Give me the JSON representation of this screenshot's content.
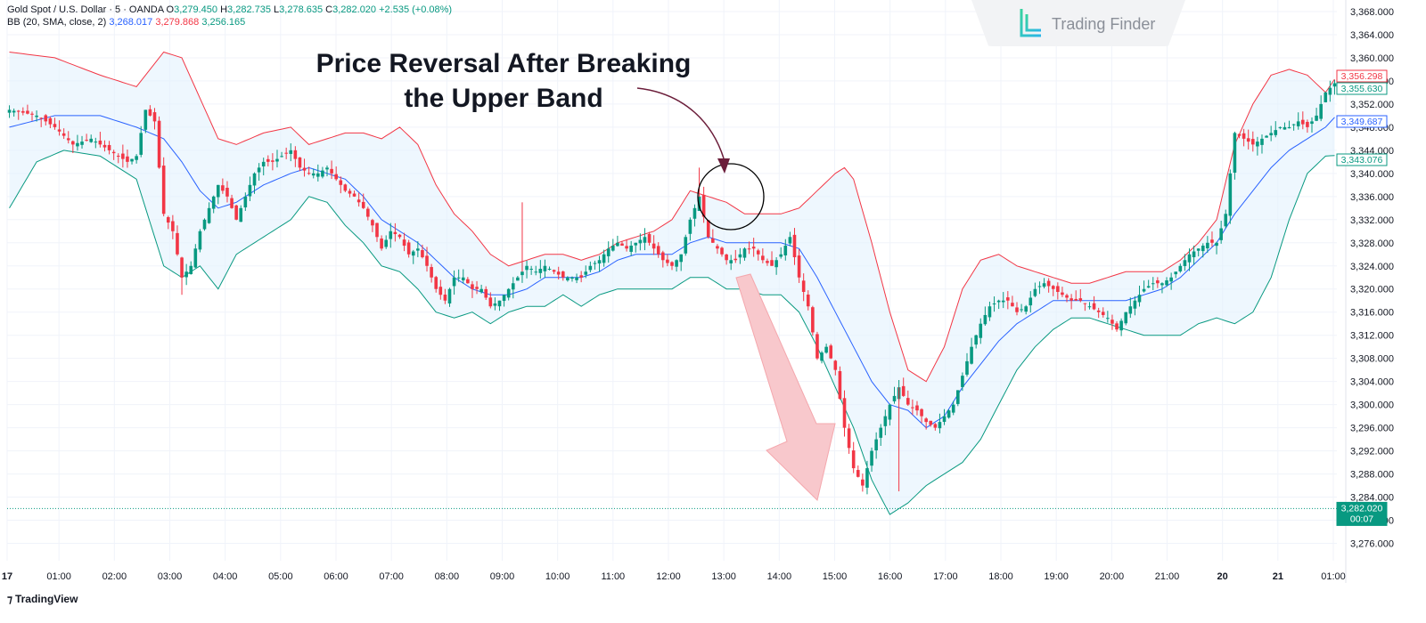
{
  "legend": {
    "symbol": "Gold Spot / U.S. Dollar · 5 · OANDA",
    "o_label": "O",
    "o_value": "3,279.450",
    "h_label": "H",
    "h_value": "3,282.735",
    "l_label": "L",
    "l_value": "3,278.635",
    "c_label": "C",
    "c_value": "3,282.020",
    "change": "+2.535 (+0.08%)",
    "bb_label": "BB (20, SMA, close, 2)",
    "bb_basis": "3,268.017",
    "bb_upper": "3,279.868",
    "bb_lower": "3,256.165"
  },
  "watermark": {
    "text": "Trading Finder",
    "icon": "trading-finder-logo-icon"
  },
  "annotation": {
    "line1": "Price Reversal After Breaking",
    "line2": "the Upper Band"
  },
  "footer": {
    "logo_text": "TradingView",
    "icon": "tradingview-logo-icon"
  },
  "colors": {
    "up": "#089981",
    "down": "#f23645",
    "basis": "#2962ff",
    "upper_band": "#f23645",
    "lower_band": "#089981",
    "band_fill": "#e3f2fd",
    "arrow_fill": "#f8c8cc",
    "curved_arrow": "#6b1d3a"
  },
  "chart_data": {
    "type": "candlestick",
    "y_ticks": [
      "3,368.000",
      "3,364.000",
      "3,360.000",
      "3,356.000",
      "3,352.000",
      "3,348.000",
      "3,344.000",
      "3,340.000",
      "3,336.000",
      "3,332.000",
      "3,328.000",
      "3,324.000",
      "3,320.000",
      "3,316.000",
      "3,312.000",
      "3,308.000",
      "3,304.000",
      "3,300.000",
      "3,296.000",
      "3,292.000",
      "3,288.000",
      "3,284.000",
      "3,280.000",
      "3,276.000"
    ],
    "ylim": [
      3273,
      3370
    ],
    "x_ticks": [
      "17",
      "01:00",
      "02:00",
      "03:00",
      "04:00",
      "05:00",
      "06:00",
      "07:00",
      "08:00",
      "09:00",
      "10:00",
      "11:00",
      "12:00",
      "13:00",
      "14:00",
      "15:00",
      "16:00",
      "17:00",
      "18:00",
      "19:00",
      "20:00",
      "21:00",
      "20",
      "21",
      "01:00"
    ],
    "bold_x_ticks": [
      "17",
      "20",
      "21"
    ],
    "price_labels": [
      {
        "value": 3356.298,
        "text": "3,356.298",
        "series": "upper"
      },
      {
        "value": 3355.63,
        "text": "3,355.630",
        "series": "close"
      },
      {
        "value": 3349.687,
        "text": "3,349.687",
        "series": "basis"
      },
      {
        "value": 3343.076,
        "text": "3,343.076",
        "series": "lower"
      },
      {
        "value": 3282.02,
        "text": "3,282.020",
        "series": "last",
        "sub": "00:07"
      }
    ],
    "last_price_line": 3282.02,
    "close_path": [
      [
        0,
        3351
      ],
      [
        6,
        3350
      ],
      [
        10,
        3348
      ],
      [
        14,
        3345
      ],
      [
        18,
        3346
      ],
      [
        22,
        3344
      ],
      [
        26,
        3342
      ],
      [
        28,
        3343
      ],
      [
        30,
        3351
      ],
      [
        32,
        3349
      ],
      [
        34,
        3333
      ],
      [
        36,
        3330
      ],
      [
        38,
        3322
      ],
      [
        40,
        3324
      ],
      [
        42,
        3330
      ],
      [
        44,
        3334
      ],
      [
        46,
        3338
      ],
      [
        48,
        3336
      ],
      [
        50,
        3332
      ],
      [
        52,
        3336
      ],
      [
        54,
        3340
      ],
      [
        56,
        3342
      ],
      [
        58,
        3342
      ],
      [
        60,
        3343
      ],
      [
        62,
        3344
      ],
      [
        64,
        3341
      ],
      [
        66,
        3340
      ],
      [
        68,
        3340
      ],
      [
        70,
        3341
      ],
      [
        72,
        3339
      ],
      [
        74,
        3337
      ],
      [
        76,
        3336
      ],
      [
        78,
        3334
      ],
      [
        80,
        3331
      ],
      [
        82,
        3327
      ],
      [
        84,
        3330
      ],
      [
        86,
        3329
      ],
      [
        88,
        3326
      ],
      [
        90,
        3327
      ],
      [
        92,
        3324
      ],
      [
        94,
        3320
      ],
      [
        96,
        3318
      ],
      [
        98,
        3322
      ],
      [
        100,
        3322
      ],
      [
        102,
        3320
      ],
      [
        104,
        3320
      ],
      [
        106,
        3317
      ],
      [
        108,
        3318
      ],
      [
        110,
        3320
      ],
      [
        112,
        3322
      ],
      [
        114,
        3324
      ],
      [
        116,
        3323
      ],
      [
        118,
        3324
      ],
      [
        120,
        3323
      ],
      [
        122,
        3322
      ],
      [
        124,
        3322
      ],
      [
        126,
        3322
      ],
      [
        128,
        3324
      ],
      [
        130,
        3325
      ],
      [
        132,
        3327
      ],
      [
        134,
        3328
      ],
      [
        136,
        3327
      ],
      [
        138,
        3328
      ],
      [
        140,
        3329
      ],
      [
        142,
        3327
      ],
      [
        144,
        3325
      ],
      [
        146,
        3324
      ],
      [
        148,
        3326
      ],
      [
        150,
        3332
      ],
      [
        152,
        3336
      ],
      [
        154,
        3329
      ],
      [
        156,
        3327
      ],
      [
        158,
        3325
      ],
      [
        160,
        3325
      ],
      [
        162,
        3327
      ],
      [
        164,
        3327
      ],
      [
        166,
        3325
      ],
      [
        168,
        3324
      ],
      [
        170,
        3326
      ],
      [
        172,
        3329
      ],
      [
        174,
        3322
      ],
      [
        176,
        3317
      ],
      [
        178,
        3308
      ],
      [
        180,
        3310
      ],
      [
        182,
        3306
      ],
      [
        184,
        3296
      ],
      [
        186,
        3289
      ],
      [
        188,
        3286
      ],
      [
        190,
        3292
      ],
      [
        192,
        3296
      ],
      [
        194,
        3300
      ],
      [
        196,
        3303
      ],
      [
        198,
        3300
      ],
      [
        200,
        3299
      ],
      [
        202,
        3297
      ],
      [
        204,
        3296
      ],
      [
        206,
        3298
      ],
      [
        208,
        3300
      ],
      [
        210,
        3305
      ],
      [
        212,
        3310
      ],
      [
        214,
        3314
      ],
      [
        216,
        3317
      ],
      [
        218,
        3318
      ],
      [
        220,
        3318
      ],
      [
        222,
        3316
      ],
      [
        224,
        3317
      ],
      [
        226,
        3320
      ],
      [
        228,
        3321
      ],
      [
        230,
        3320
      ],
      [
        232,
        3319
      ],
      [
        234,
        3318
      ],
      [
        236,
        3318
      ],
      [
        238,
        3317
      ],
      [
        240,
        3316
      ],
      [
        242,
        3315
      ],
      [
        244,
        3313
      ],
      [
        246,
        3316
      ],
      [
        248,
        3318
      ],
      [
        250,
        3320
      ],
      [
        252,
        3321
      ],
      [
        254,
        3321
      ],
      [
        256,
        3322
      ],
      [
        258,
        3324
      ],
      [
        260,
        3326
      ],
      [
        262,
        3327
      ],
      [
        264,
        3328
      ],
      [
        266,
        3328
      ],
      [
        268,
        3333
      ],
      [
        270,
        3347
      ],
      [
        272,
        3346
      ],
      [
        274,
        3345
      ],
      [
        276,
        3346
      ],
      [
        278,
        3347
      ],
      [
        280,
        3348
      ],
      [
        282,
        3348
      ],
      [
        284,
        3349
      ],
      [
        286,
        3348
      ],
      [
        288,
        3350
      ],
      [
        290,
        3354
      ],
      [
        292,
        3355.6
      ]
    ],
    "upper_path": [
      [
        0,
        3361
      ],
      [
        10,
        3360
      ],
      [
        20,
        3357
      ],
      [
        28,
        3355
      ],
      [
        34,
        3361
      ],
      [
        38,
        3360
      ],
      [
        42,
        3353
      ],
      [
        46,
        3346
      ],
      [
        50,
        3345
      ],
      [
        56,
        3347
      ],
      [
        62,
        3348
      ],
      [
        66,
        3345
      ],
      [
        70,
        3346
      ],
      [
        74,
        3347
      ],
      [
        78,
        3347
      ],
      [
        82,
        3346
      ],
      [
        86,
        3348
      ],
      [
        90,
        3345
      ],
      [
        94,
        3338
      ],
      [
        98,
        3333
      ],
      [
        102,
        3330
      ],
      [
        106,
        3326
      ],
      [
        110,
        3324
      ],
      [
        114,
        3325
      ],
      [
        118,
        3326
      ],
      [
        122,
        3326
      ],
      [
        126,
        3325
      ],
      [
        130,
        3326
      ],
      [
        134,
        3328
      ],
      [
        138,
        3329
      ],
      [
        142,
        3330
      ],
      [
        146,
        3332
      ],
      [
        150,
        3337
      ],
      [
        154,
        3336
      ],
      [
        158,
        3335
      ],
      [
        162,
        3333
      ],
      [
        166,
        3333
      ],
      [
        170,
        3333
      ],
      [
        174,
        3334
      ],
      [
        178,
        3337
      ],
      [
        182,
        3340
      ],
      [
        184,
        3341
      ],
      [
        186,
        3339
      ],
      [
        190,
        3328
      ],
      [
        194,
        3316
      ],
      [
        198,
        3306
      ],
      [
        202,
        3304
      ],
      [
        206,
        3310
      ],
      [
        210,
        3320
      ],
      [
        214,
        3325
      ],
      [
        218,
        3326
      ],
      [
        222,
        3324
      ],
      [
        226,
        3323
      ],
      [
        230,
        3322
      ],
      [
        234,
        3321
      ],
      [
        238,
        3321
      ],
      [
        242,
        3322
      ],
      [
        246,
        3323
      ],
      [
        250,
        3323
      ],
      [
        254,
        3323
      ],
      [
        258,
        3325
      ],
      [
        262,
        3328
      ],
      [
        266,
        3332
      ],
      [
        270,
        3345
      ],
      [
        274,
        3352
      ],
      [
        278,
        3357
      ],
      [
        282,
        3358
      ],
      [
        286,
        3357
      ],
      [
        290,
        3354
      ],
      [
        292,
        3356.3
      ]
    ],
    "basis_path": [
      [
        0,
        3348
      ],
      [
        10,
        3350
      ],
      [
        20,
        3350
      ],
      [
        28,
        3348
      ],
      [
        34,
        3346
      ],
      [
        38,
        3342
      ],
      [
        42,
        3337
      ],
      [
        46,
        3334
      ],
      [
        50,
        3335
      ],
      [
        56,
        3338
      ],
      [
        62,
        3340
      ],
      [
        66,
        3341
      ],
      [
        70,
        3340
      ],
      [
        74,
        3339
      ],
      [
        78,
        3336
      ],
      [
        82,
        3332
      ],
      [
        86,
        3330
      ],
      [
        90,
        3328
      ],
      [
        94,
        3325
      ],
      [
        98,
        3322
      ],
      [
        102,
        3320
      ],
      [
        106,
        3319
      ],
      [
        110,
        3319
      ],
      [
        114,
        3320
      ],
      [
        118,
        3322
      ],
      [
        122,
        3322
      ],
      [
        126,
        3322
      ],
      [
        130,
        3323
      ],
      [
        134,
        3325
      ],
      [
        138,
        3326
      ],
      [
        142,
        3326
      ],
      [
        146,
        3326
      ],
      [
        150,
        3328
      ],
      [
        154,
        3329
      ],
      [
        158,
        3328
      ],
      [
        162,
        3328
      ],
      [
        166,
        3328
      ],
      [
        170,
        3328
      ],
      [
        174,
        3327
      ],
      [
        178,
        3322
      ],
      [
        182,
        3316
      ],
      [
        186,
        3310
      ],
      [
        190,
        3304
      ],
      [
        194,
        3300
      ],
      [
        198,
        3299
      ],
      [
        202,
        3296
      ],
      [
        206,
        3298
      ],
      [
        210,
        3303
      ],
      [
        214,
        3307
      ],
      [
        218,
        3311
      ],
      [
        222,
        3314
      ],
      [
        226,
        3316
      ],
      [
        230,
        3318
      ],
      [
        234,
        3318
      ],
      [
        238,
        3318
      ],
      [
        242,
        3318
      ],
      [
        246,
        3318
      ],
      [
        250,
        3319
      ],
      [
        254,
        3320
      ],
      [
        258,
        3322
      ],
      [
        262,
        3325
      ],
      [
        266,
        3328
      ],
      [
        270,
        3333
      ],
      [
        274,
        3337
      ],
      [
        278,
        3341
      ],
      [
        282,
        3344
      ],
      [
        286,
        3346
      ],
      [
        290,
        3348
      ],
      [
        292,
        3349.7
      ]
    ],
    "lower_path": [
      [
        0,
        3334
      ],
      [
        6,
        3342
      ],
      [
        12,
        3344
      ],
      [
        20,
        3343
      ],
      [
        28,
        3339
      ],
      [
        34,
        3324
      ],
      [
        38,
        3322
      ],
      [
        42,
        3324
      ],
      [
        46,
        3320
      ],
      [
        50,
        3326
      ],
      [
        56,
        3329
      ],
      [
        62,
        3332
      ],
      [
        66,
        3336
      ],
      [
        70,
        3335
      ],
      [
        74,
        3331
      ],
      [
        78,
        3328
      ],
      [
        82,
        3324
      ],
      [
        86,
        3323
      ],
      [
        90,
        3320
      ],
      [
        94,
        3316
      ],
      [
        98,
        3315
      ],
      [
        102,
        3316
      ],
      [
        106,
        3314
      ],
      [
        110,
        3316
      ],
      [
        114,
        3317
      ],
      [
        118,
        3317
      ],
      [
        122,
        3319
      ],
      [
        126,
        3317
      ],
      [
        130,
        3319
      ],
      [
        134,
        3320
      ],
      [
        138,
        3320
      ],
      [
        142,
        3320
      ],
      [
        146,
        3320
      ],
      [
        150,
        3322
      ],
      [
        154,
        3322
      ],
      [
        158,
        3320
      ],
      [
        162,
        3320
      ],
      [
        166,
        3319
      ],
      [
        170,
        3319
      ],
      [
        174,
        3316
      ],
      [
        178,
        3310
      ],
      [
        182,
        3303
      ],
      [
        186,
        3296
      ],
      [
        190,
        3287
      ],
      [
        194,
        3281
      ],
      [
        198,
        3283
      ],
      [
        202,
        3286
      ],
      [
        206,
        3288
      ],
      [
        210,
        3290
      ],
      [
        214,
        3294
      ],
      [
        218,
        3300
      ],
      [
        222,
        3306
      ],
      [
        226,
        3310
      ],
      [
        230,
        3313
      ],
      [
        234,
        3315
      ],
      [
        238,
        3315
      ],
      [
        242,
        3314
      ],
      [
        246,
        3313
      ],
      [
        250,
        3312
      ],
      [
        254,
        3312
      ],
      [
        258,
        3312
      ],
      [
        262,
        3314
      ],
      [
        266,
        3315
      ],
      [
        270,
        3314
      ],
      [
        274,
        3316
      ],
      [
        278,
        3322
      ],
      [
        282,
        3332
      ],
      [
        286,
        3340
      ],
      [
        290,
        3343
      ],
      [
        292,
        3343.1
      ]
    ]
  }
}
